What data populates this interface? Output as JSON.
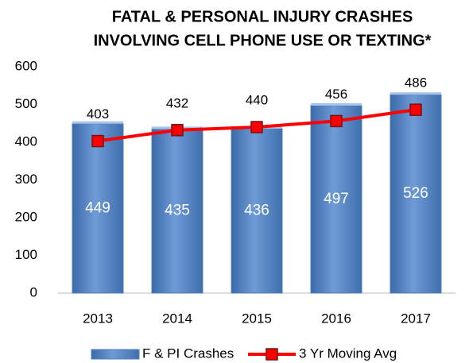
{
  "chart_data": {
    "type": "bar",
    "title": [
      "FATAL & PERSONAL INJURY CRASHES",
      "INVOLVING CELL PHONE USE OR TEXTING*"
    ],
    "categories": [
      "2013",
      "2014",
      "2015",
      "2016",
      "2017"
    ],
    "series": [
      {
        "name": "F & PI Crashes",
        "type": "bar",
        "color": "#4f81bd",
        "values": [
          449,
          435,
          436,
          497,
          526
        ]
      },
      {
        "name": "3 Yr Moving Avg",
        "type": "line",
        "color": "#ff0000",
        "values": [
          403,
          432,
          440,
          456,
          486
        ]
      }
    ],
    "ylim": [
      0,
      600
    ],
    "yticks": [
      0,
      100,
      200,
      300,
      400,
      500,
      600
    ],
    "grid": false,
    "legend": "bottom"
  }
}
